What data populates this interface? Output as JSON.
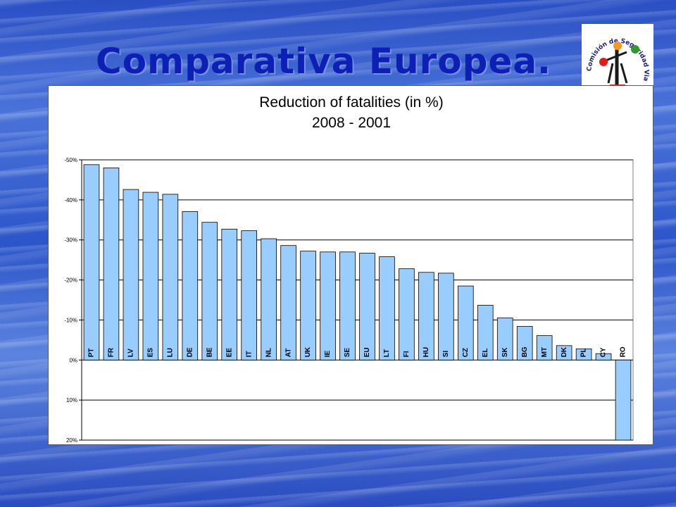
{
  "slide": {
    "title": "Comparativa Europea."
  },
  "logo": {
    "text_top": "Comisión de Seguridad",
    "text_right": "Vial del",
    "text_bottom": "Alto y Medio Vinalopó",
    "colors": [
      "#e21c1c",
      "#f39a1d",
      "#2e9c2a",
      "#1a1a1a"
    ]
  },
  "colors": {
    "bar_fill": "#99ccff",
    "bar_stroke": "#000000",
    "grid": "#000000",
    "title_blue": "#0c20b5"
  },
  "chart_data": {
    "type": "bar",
    "title": "Reduction of fatalities (in %)",
    "subtitle": "2008 - 2001",
    "xlabel": "",
    "ylabel": "",
    "ylim": [
      -50,
      20
    ],
    "y_inverted": true,
    "yticks": [
      -50,
      -40,
      -30,
      -20,
      -10,
      0,
      10,
      20
    ],
    "ytick_labels": [
      "-50%",
      "-40%",
      "-30%",
      "-20%",
      "-10%",
      "0%",
      "10%",
      "20%"
    ],
    "grid": true,
    "legend": "none",
    "categories": [
      "PT",
      "FR",
      "LV",
      "ES",
      "LU",
      "DE",
      "BE",
      "EE",
      "IT",
      "NL",
      "AT",
      "UK",
      "IE",
      "SE",
      "EU",
      "LT",
      "FI",
      "HU",
      "SI",
      "CZ",
      "EL",
      "SK",
      "BG",
      "MT",
      "DK",
      "PL",
      "CY",
      "RO"
    ],
    "values": [
      -48.8,
      -48.0,
      -42.6,
      -41.9,
      -41.4,
      -37.1,
      -34.4,
      -32.7,
      -32.3,
      -30.3,
      -28.6,
      -27.2,
      -27.0,
      -27.0,
      -26.7,
      -25.8,
      -22.8,
      -21.9,
      -21.7,
      -18.5,
      -13.7,
      -10.5,
      -8.4,
      -6.1,
      -3.6,
      -2.8,
      -1.6,
      20.0
    ]
  }
}
